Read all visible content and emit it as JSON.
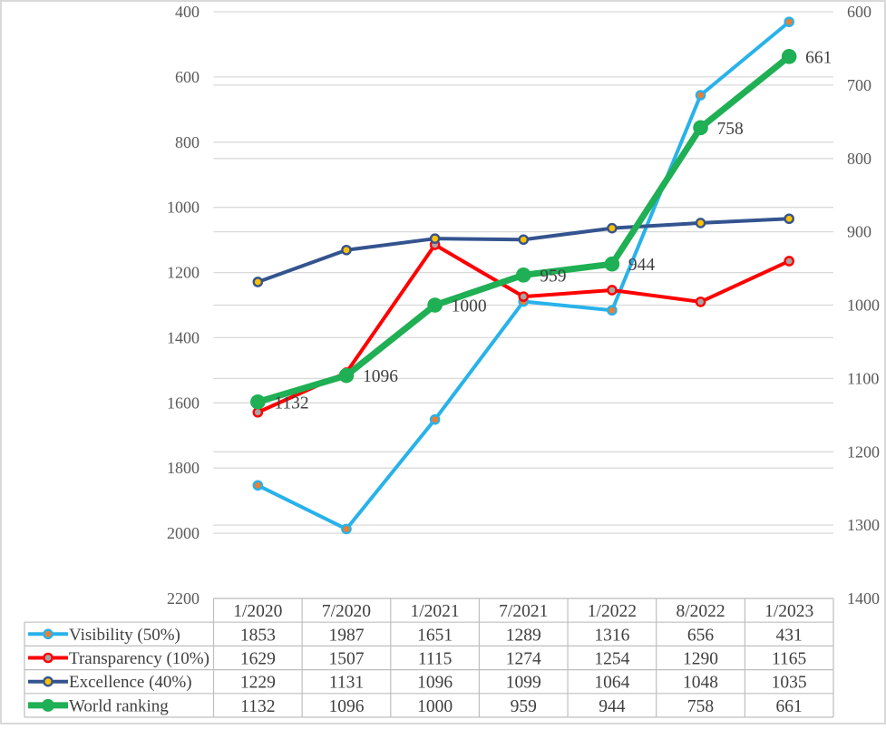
{
  "chart_data": {
    "type": "line",
    "categories": [
      "1/2020",
      "7/2020",
      "1/2021",
      "7/2021",
      "1/2022",
      "8/2022",
      "1/2023"
    ],
    "series": [
      {
        "name": "Visibility (50%)",
        "values": [
          1853,
          1987,
          1651,
          1289,
          1316,
          656,
          431
        ],
        "axis": "left",
        "color": "#28B2EA",
        "marker_fill": "#ED7D31",
        "line_width": 4
      },
      {
        "name": "Transparency (10%)",
        "values": [
          1629,
          1507,
          1115,
          1274,
          1254,
          1290,
          1165
        ],
        "axis": "left",
        "color": "#FF0000",
        "marker_fill": "#A6A6A6",
        "line_width": 4
      },
      {
        "name": "Excellence (40%)",
        "values": [
          1229,
          1131,
          1096,
          1099,
          1064,
          1048,
          1035
        ],
        "axis": "left",
        "color": "#34548F",
        "marker_fill": "#FFC000",
        "line_width": 4
      },
      {
        "name": "World ranking",
        "values": [
          1132,
          1096,
          1000,
          959,
          944,
          758,
          661
        ],
        "axis": "right",
        "color": "#1FAF54",
        "marker_fill": "#1FAF54",
        "line_width": 7,
        "data_labels": [
          "1132",
          "1096",
          "1000",
          "959",
          "944",
          "758",
          "661"
        ]
      }
    ],
    "left_axis": {
      "min": 400,
      "max": 2200,
      "ticks": [
        400,
        600,
        800,
        1000,
        1200,
        1400,
        1600,
        1800,
        2000,
        2200
      ]
    },
    "right_axis": {
      "min": 600,
      "max": 1400,
      "ticks": [
        600,
        700,
        800,
        900,
        1000,
        1100,
        1200,
        1300,
        1400
      ]
    },
    "grid": true,
    "legend_position": "table-left",
    "colors": {
      "grid": "#D9D9D9",
      "table_border": "#BFBFBF",
      "axis_text": "#595959",
      "table_text": "#404040",
      "label_text": "#404040",
      "outer_border": "#D9D9D9"
    }
  }
}
